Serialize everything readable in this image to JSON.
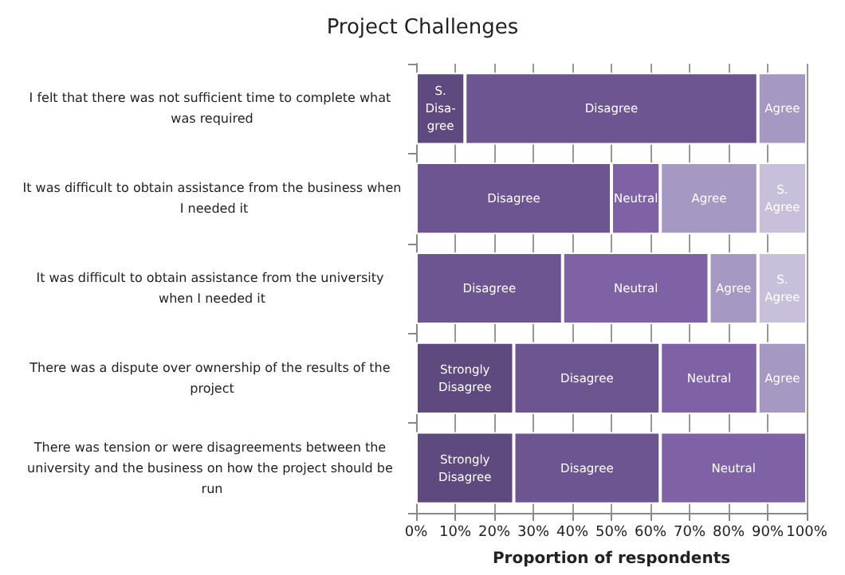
{
  "chart_data": {
    "type": "bar",
    "orientation": "horizontal",
    "stacked": true,
    "title": "Project Challenges",
    "xlabel": "Proportion of respondents",
    "categories": [
      "I felt that there was not sufficient time to complete what was required",
      "It was difficult to obtain assistance from the business when I needed it",
      "It was difficult to obtain assistance from the university when I needed it",
      "There was a dispute over ownership of the results of the project",
      "There was tension or were disagreements between the university and the business on how the project should be run"
    ],
    "series": [
      {
        "color": "#5e4a7e",
        "values": [
          12.5,
          null,
          null,
          25,
          25
        ],
        "value_labels": [
          "S.\nDisa-\ngree",
          null,
          null,
          "Strongly\nDisagree",
          "Strongly\nDisagree"
        ]
      },
      {
        "color": "#6c5590",
        "values": [
          75,
          50,
          37.5,
          37.5,
          37.5
        ],
        "value_labels": [
          "Disagree",
          "Disagree",
          "Disagree",
          "Disagree",
          "Disagree"
        ]
      },
      {
        "color": "#7e62a5",
        "values": [
          null,
          12.5,
          37.5,
          25,
          37.5
        ],
        "value_labels": [
          null,
          "Neutral",
          "Neutral",
          "Neutral",
          "Neutral"
        ]
      },
      {
        "color": "#a598c2",
        "values": [
          12.5,
          25,
          12.5,
          12.5,
          null
        ],
        "value_labels": [
          "Agree",
          "Agree",
          "Agree",
          "Agree",
          null
        ]
      },
      {
        "color": "#c8c0da",
        "values": [
          null,
          12.5,
          12.5,
          null,
          null
        ],
        "value_labels": [
          null,
          "S.\nAgree",
          "S.\nAgree",
          null,
          null
        ]
      }
    ],
    "xlim": [
      0,
      100
    ],
    "xticks": [
      {
        "value": 0,
        "label": "0%"
      },
      {
        "value": 10,
        "label": "10%"
      },
      {
        "value": 20,
        "label": "20%"
      },
      {
        "value": 30,
        "label": "30%"
      },
      {
        "value": 40,
        "label": "40%"
      },
      {
        "value": 50,
        "label": "50%"
      },
      {
        "value": 60,
        "label": "60%"
      },
      {
        "value": 70,
        "label": "70%"
      },
      {
        "value": 80,
        "label": "80%"
      },
      {
        "value": 90,
        "label": "90%"
      },
      {
        "value": 100,
        "label": "100%"
      }
    ],
    "grid": "x"
  }
}
